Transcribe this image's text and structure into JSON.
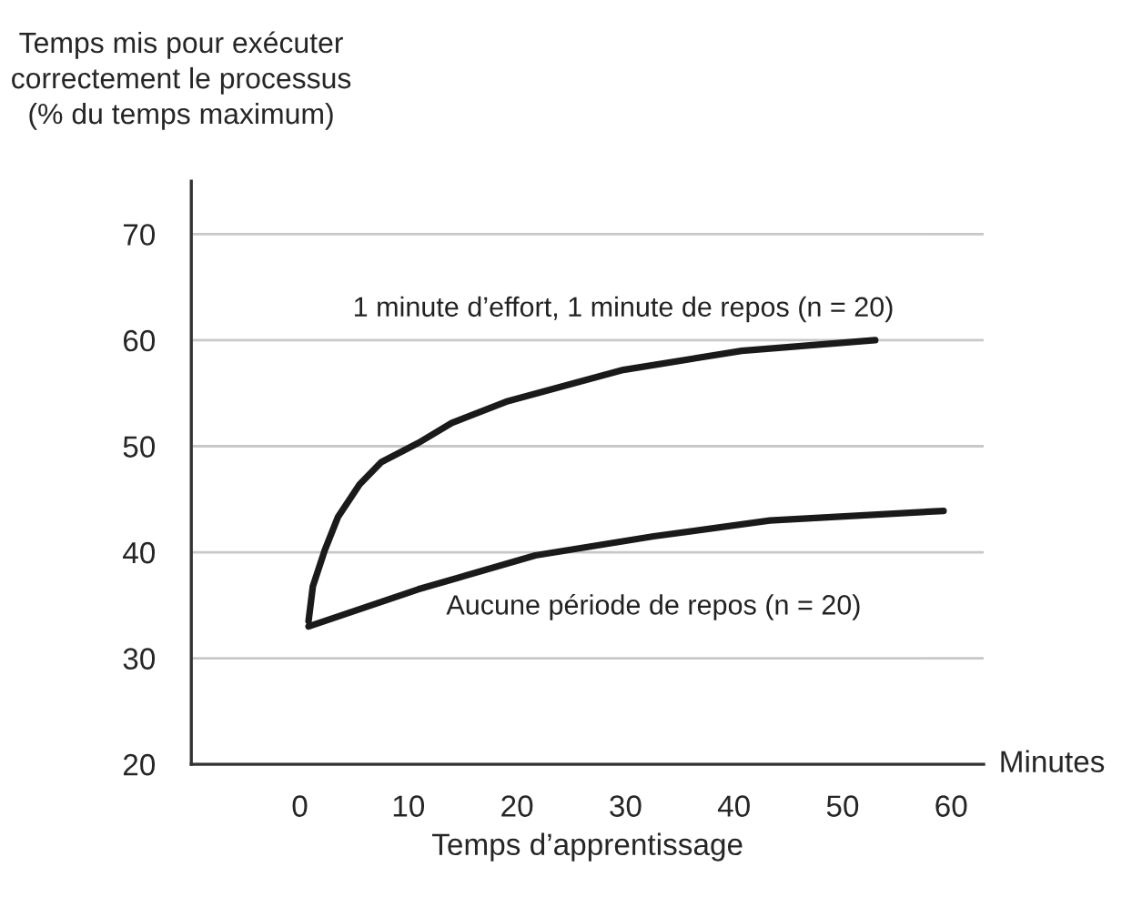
{
  "chart_data": {
    "type": "line",
    "ylabel": "Temps mis pour exécuter\ncorrectement le processus\n(% du temps maximum)",
    "xlabel": "Temps d’apprentissage",
    "annotations": [
      "Minutes"
    ],
    "series": [
      {
        "name": "1 minute d’effort, 1 minute de repos (n = 20)",
        "color": "#1a1a1a",
        "x": [
          0.8,
          1.2,
          2.3,
          3.5,
          5.5,
          7.5,
          10.9,
          14,
          19,
          29.8,
          40.7,
          53
        ],
        "values": [
          33.5,
          36.8,
          40.2,
          43.3,
          46.4,
          48.5,
          50.3,
          52.2,
          54.2,
          57.2,
          59,
          60
        ]
      },
      {
        "name": "Aucune période de repos (n = 20)",
        "color": "#1a1a1a",
        "x": [
          0.8,
          10.9,
          21.7,
          32.6,
          43.3,
          59.3
        ],
        "values": [
          33,
          36.5,
          39.7,
          41.5,
          43,
          43.9
        ]
      }
    ],
    "xlim": [
      -10,
      63
    ],
    "ylim": [
      20,
      75
    ],
    "xticks": [
      0,
      10,
      20,
      30,
      40,
      50,
      60
    ],
    "yticks": [
      20,
      30,
      40,
      50,
      60,
      70
    ],
    "grid": "y",
    "legend": false,
    "marker": "none",
    "line_style": "solid"
  }
}
